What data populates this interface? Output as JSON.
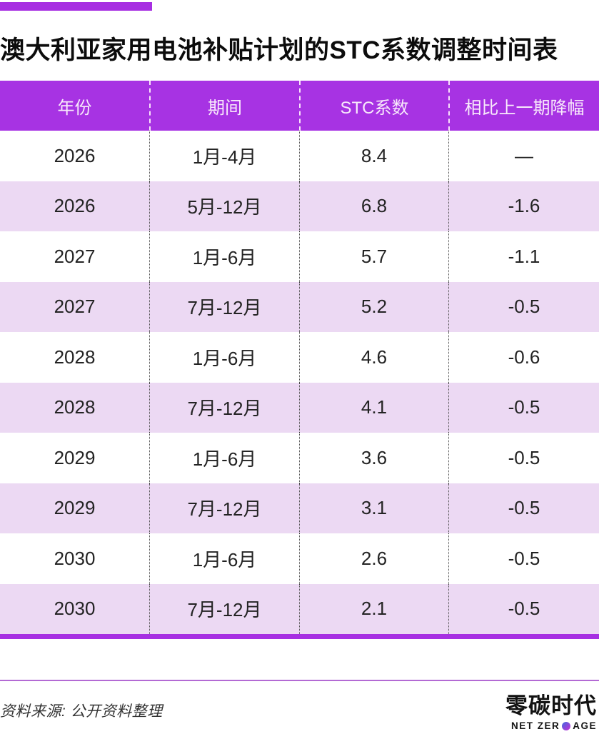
{
  "colors": {
    "accent": "#a72fe2",
    "header_bg": "#a733e3",
    "header_text": "#f8e9fb",
    "row_alt_bg": "#ecd9f3",
    "thin_rule": "#b36ad4",
    "logo_dot_from": "#3f6be0",
    "logo_dot_to": "#c92bd4"
  },
  "title": "澳大利亚家用电池补贴计划的STC系数调整时间表",
  "chart_data": {
    "type": "table",
    "title": "澳大利亚家用电池补贴计划的STC系数调整时间表",
    "columns": [
      "年份",
      "期间",
      "STC系数",
      "相比上一期降幅"
    ],
    "rows": [
      [
        "2026",
        "1月-4月",
        "8.4",
        "—"
      ],
      [
        "2026",
        "5月-12月",
        "6.8",
        "-1.6"
      ],
      [
        "2027",
        "1月-6月",
        "5.7",
        "-1.1"
      ],
      [
        "2027",
        "7月-12月",
        "5.2",
        "-0.5"
      ],
      [
        "2028",
        "1月-6月",
        "4.6",
        "-0.6"
      ],
      [
        "2028",
        "7月-12月",
        "4.1",
        "-0.5"
      ],
      [
        "2029",
        "1月-6月",
        "3.6",
        "-0.5"
      ],
      [
        "2029",
        "7月-12月",
        "3.1",
        "-0.5"
      ],
      [
        "2030",
        "1月-6月",
        "2.6",
        "-0.5"
      ],
      [
        "2030",
        "7月-12月",
        "2.1",
        "-0.5"
      ]
    ]
  },
  "footer": {
    "source": "资料来源: 公开资料整理",
    "logo_cn": "零碳时代",
    "logo_en_left": "NET ZER",
    "logo_en_right": "AGE"
  }
}
